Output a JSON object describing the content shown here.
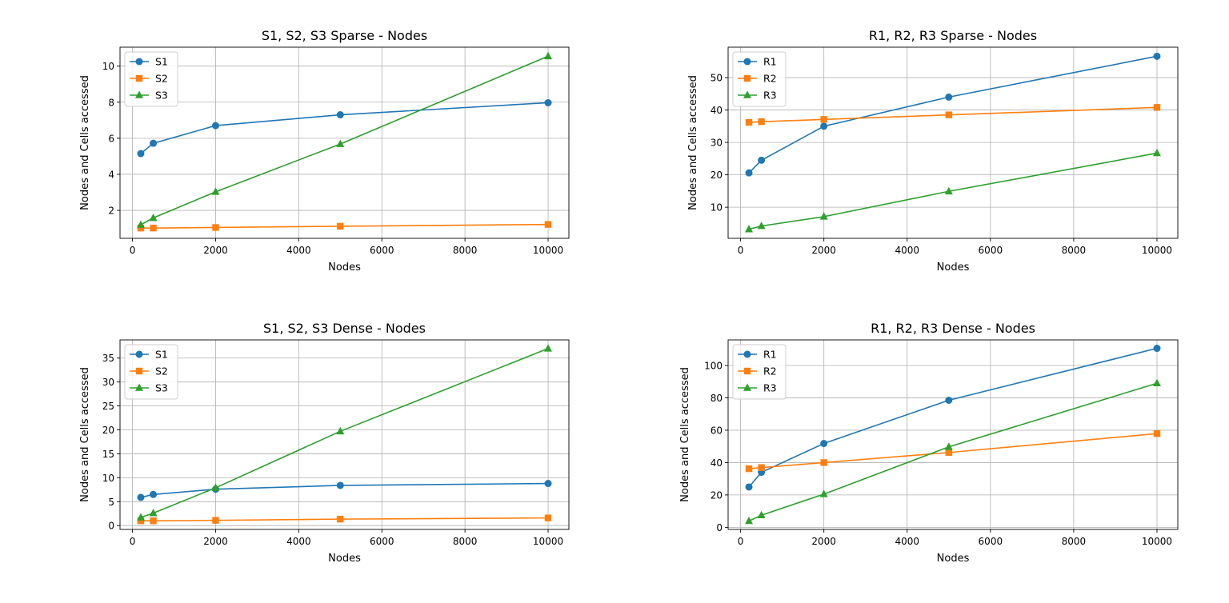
{
  "chart_data": [
    {
      "type": "line",
      "title": "S1, S2, S3 Sparse - Nodes",
      "xlabel": "Nodes",
      "ylabel": "Nodes and Cells accessed",
      "x": [
        200,
        500,
        2000,
        5000,
        10000
      ],
      "xlim": [
        -300,
        10500
      ],
      "ylim": [
        0.45,
        11.05
      ],
      "xticks": [
        0,
        2000,
        4000,
        6000,
        8000,
        10000
      ],
      "yticks": [
        2,
        4,
        6,
        8,
        10
      ],
      "grid": true,
      "legend": "upper left",
      "series": [
        {
          "name": "S1",
          "values": [
            5.15,
            5.72,
            6.7,
            7.3,
            7.97
          ],
          "color": "#1f77b4",
          "marker": "circle"
        },
        {
          "name": "S2",
          "values": [
            1.02,
            1.02,
            1.05,
            1.12,
            1.22
          ],
          "color": "#ff7f0e",
          "marker": "square"
        },
        {
          "name": "S3",
          "values": [
            1.2,
            1.58,
            3.03,
            5.68,
            10.55
          ],
          "color": "#2ca02c",
          "marker": "triangle"
        }
      ]
    },
    {
      "type": "line",
      "title": "R1, R2, R3 Sparse - Nodes",
      "xlabel": "Nodes",
      "ylabel": "Nodes and Cells accessed",
      "x": [
        200,
        500,
        2000,
        5000,
        10000
      ],
      "xlim": [
        -300,
        10500
      ],
      "ylim": [
        0.4,
        59.4
      ],
      "xticks": [
        0,
        2000,
        4000,
        6000,
        8000,
        10000
      ],
      "yticks": [
        10,
        20,
        30,
        40,
        50
      ],
      "grid": true,
      "legend": "upper left",
      "series": [
        {
          "name": "R1",
          "values": [
            20.6,
            24.5,
            35.0,
            44.0,
            56.6
          ],
          "color": "#1f77b4",
          "marker": "circle"
        },
        {
          "name": "R2",
          "values": [
            36.2,
            36.4,
            37.1,
            38.5,
            40.8
          ],
          "color": "#ff7f0e",
          "marker": "square"
        },
        {
          "name": "R3",
          "values": [
            3.2,
            4.2,
            7.1,
            14.9,
            26.7
          ],
          "color": "#2ca02c",
          "marker": "triangle"
        }
      ]
    },
    {
      "type": "line",
      "title": "S1, S2, S3 Dense - Nodes",
      "xlabel": "Nodes",
      "ylabel": "Nodes and Cells accessed",
      "x": [
        200,
        500,
        2000,
        5000,
        10000
      ],
      "xlim": [
        -300,
        10500
      ],
      "ylim": [
        -0.8,
        38.8
      ],
      "xticks": [
        0,
        2000,
        4000,
        6000,
        8000,
        10000
      ],
      "yticks": [
        0,
        5,
        10,
        15,
        20,
        25,
        30,
        35
      ],
      "grid": true,
      "legend": "upper left",
      "series": [
        {
          "name": "S1",
          "values": [
            5.9,
            6.5,
            7.6,
            8.4,
            8.8
          ],
          "color": "#1f77b4",
          "marker": "circle"
        },
        {
          "name": "S2",
          "values": [
            1.0,
            1.0,
            1.1,
            1.35,
            1.6
          ],
          "color": "#ff7f0e",
          "marker": "square"
        },
        {
          "name": "S3",
          "values": [
            1.7,
            2.6,
            7.9,
            19.7,
            37.0
          ],
          "color": "#2ca02c",
          "marker": "triangle"
        }
      ]
    },
    {
      "type": "line",
      "title": "R1, R2, R3 Dense - Nodes",
      "xlabel": "Nodes",
      "ylabel": "Nodes and Cells accessed",
      "x": [
        200,
        500,
        2000,
        5000,
        10000
      ],
      "xlim": [
        -300,
        10500
      ],
      "ylim": [
        -1.3,
        115.8
      ],
      "xticks": [
        0,
        2000,
        4000,
        6000,
        8000,
        10000
      ],
      "yticks": [
        0,
        20,
        40,
        60,
        80,
        100
      ],
      "grid": true,
      "legend": "upper left",
      "series": [
        {
          "name": "R1",
          "values": [
            24.9,
            34.0,
            51.8,
            78.5,
            110.6
          ],
          "color": "#1f77b4",
          "marker": "circle"
        },
        {
          "name": "R2",
          "values": [
            36.2,
            36.9,
            40.0,
            46.2,
            57.9
          ],
          "color": "#ff7f0e",
          "marker": "square"
        },
        {
          "name": "R3",
          "values": [
            3.9,
            7.5,
            20.5,
            49.7,
            89.0
          ],
          "color": "#2ca02c",
          "marker": "triangle"
        }
      ]
    }
  ]
}
